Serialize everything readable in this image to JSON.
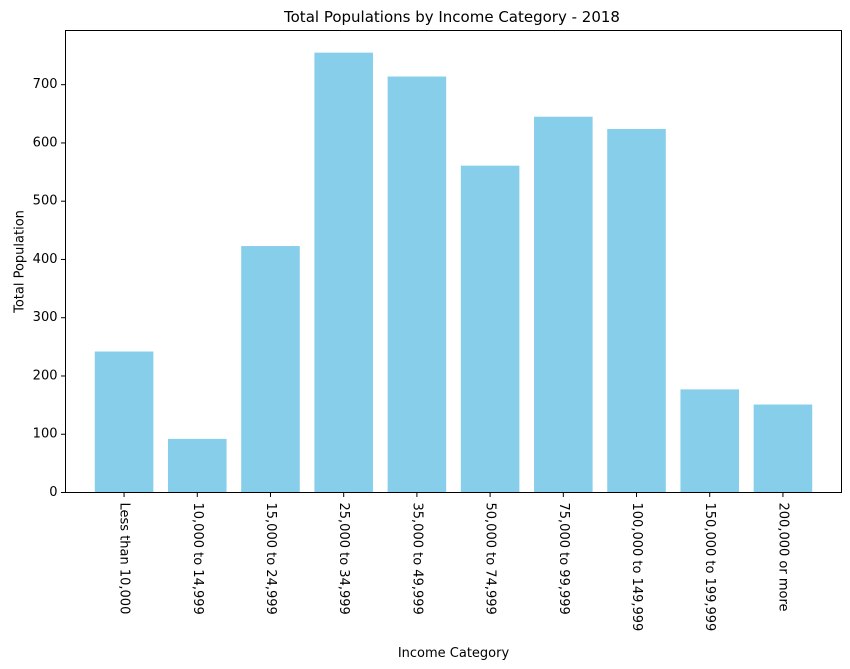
{
  "chart_data": {
    "type": "bar",
    "title": "Total Populations by Income Category - 2018",
    "xlabel": "Income Category",
    "ylabel": "Total Population",
    "categories": [
      "Less than 10,000",
      "10,000 to 14,999",
      "15,000 to 24,999",
      "25,000 to 34,999",
      "35,000 to 49,999",
      "50,000 to 74,999",
      "75,000 to 99,999",
      "100,000 to 149,999",
      "150,000 to 199,999",
      "200,000 or more"
    ],
    "values": [
      242,
      92,
      423,
      755,
      714,
      561,
      645,
      624,
      177,
      151
    ],
    "ylim": [
      0,
      793
    ],
    "yticks": [
      0,
      100,
      200,
      300,
      400,
      500,
      600,
      700
    ],
    "bar_color": "#87ceeb",
    "grid": false,
    "x_tick_rotation": "vertical"
  }
}
